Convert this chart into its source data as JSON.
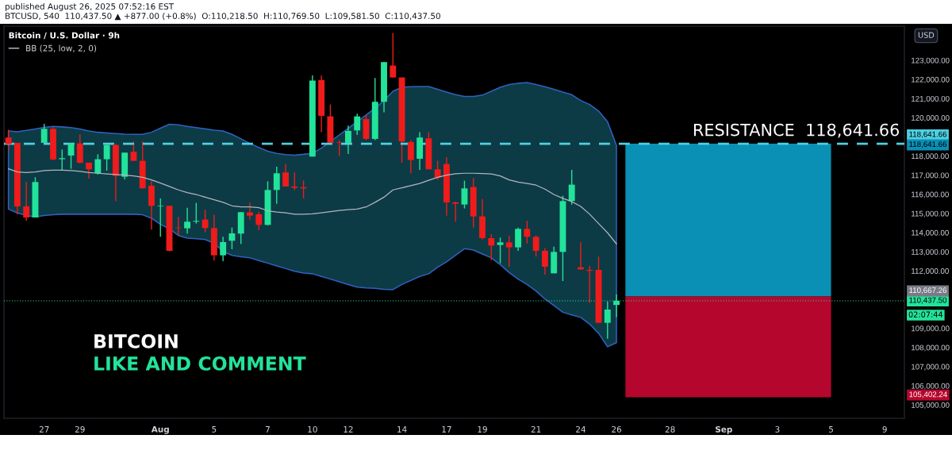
{
  "chart_data": {
    "type": "candlestick",
    "title": "Bitcoin / U.S. Dollar · 9h",
    "categories": [
      null,
      null,
      null,
      null,
      "27",
      null,
      null,
      null,
      "29",
      null,
      null,
      null,
      null,
      null,
      null,
      null,
      null,
      "Aug",
      null,
      null,
      null,
      null,
      null,
      "5",
      null,
      null,
      null,
      null,
      null,
      "7",
      null,
      null,
      null,
      null,
      "10",
      null,
      null,
      null,
      "12",
      null,
      null,
      null,
      null,
      null,
      "14",
      null,
      null,
      null,
      null,
      "17",
      null,
      null,
      null,
      "19",
      null,
      null,
      null,
      null,
      null,
      "21",
      null,
      null,
      null,
      null,
      "24",
      null,
      null,
      null,
      "26",
      null,
      null,
      null,
      null,
      null,
      "28",
      null,
      null,
      null,
      null,
      null,
      "Sep",
      null,
      null,
      null,
      null,
      null,
      "3",
      null,
      null,
      null,
      null,
      null,
      "5",
      null,
      null,
      null,
      null,
      null,
      "9",
      null,
      null
    ],
    "ohlc": [
      [
        118964,
        119379,
        118342,
        118619
      ],
      [
        118688,
        118688,
        114955,
        115370
      ],
      [
        115370,
        116642,
        114610,
        114790
      ],
      [
        114790,
        116891,
        114790,
        116642
      ],
      [
        118688,
        119683,
        118688,
        119420
      ],
      [
        119420,
        119517,
        117789,
        117817
      ],
      [
        117831,
        118342,
        117264,
        117886
      ],
      [
        118024,
        118660,
        117333,
        118660
      ],
      [
        118660,
        119130,
        117609,
        117651
      ],
      [
        117651,
        117651,
        116821,
        117305
      ],
      [
        117098,
        118093,
        117029,
        117831
      ],
      [
        117831,
        118577,
        117236,
        118577
      ],
      [
        118577,
        118619,
        115646,
        116960
      ],
      [
        116918,
        118176,
        116780,
        118176
      ],
      [
        118218,
        118757,
        117748,
        117748
      ],
      [
        117748,
        118757,
        116310,
        116310
      ],
      [
        116448,
        116683,
        114154,
        115398
      ],
      [
        115370,
        115785,
        113781,
        115398
      ],
      [
        115398,
        115398,
        113020,
        113048
      ],
      [
        114264,
        114817,
        113850,
        114237
      ],
      [
        114223,
        115301,
        113946,
        114568
      ],
      [
        114568,
        115550,
        114472,
        114610
      ],
      [
        114679,
        115190,
        114015,
        114237
      ],
      [
        114237,
        114928,
        112536,
        112813
      ],
      [
        112813,
        113781,
        112509,
        113504
      ],
      [
        113573,
        114264,
        113131,
        113960
      ],
      [
        113946,
        115066,
        113407,
        115066
      ],
      [
        115052,
        115564,
        114679,
        114886
      ],
      [
        114955,
        115094,
        114126,
        114403
      ],
      [
        114403,
        116683,
        114375,
        116227
      ],
      [
        116227,
        117444,
        115508,
        117098
      ],
      [
        117140,
        117582,
        116407,
        116407
      ],
      [
        116407,
        117140,
        116227,
        116338
      ],
      [
        116365,
        116725,
        115785,
        116310
      ],
      [
        117969,
        122212,
        117969,
        121936
      ],
      [
        121964,
        122212,
        119241,
        120098
      ],
      [
        120070,
        120692,
        118688,
        118688
      ],
      [
        118715,
        118826,
        117996,
        118688
      ],
      [
        118688,
        119586,
        118107,
        119310
      ],
      [
        119337,
        120208,
        119102,
        120070
      ],
      [
        119932,
        120139,
        118826,
        118895
      ],
      [
        118895,
        122075,
        118826,
        120830
      ],
      [
        120830,
        122904,
        120277,
        122904
      ],
      [
        122724,
        124424,
        122102,
        122102
      ],
      [
        122102,
        122102,
        117651,
        118757
      ],
      [
        118729,
        118826,
        117098,
        117789
      ],
      [
        117858,
        119241,
        117278,
        118964
      ],
      [
        118923,
        119241,
        117305,
        117305
      ],
      [
        117305,
        117748,
        116752,
        116863
      ],
      [
        117582,
        117927,
        114886,
        115577
      ],
      [
        115577,
        115619,
        114568,
        115508
      ],
      [
        115467,
        116711,
        115260,
        116310
      ],
      [
        116379,
        116849,
        114264,
        114845
      ],
      [
        114845,
        115757,
        113642,
        113711
      ],
      [
        113711,
        113919,
        112564,
        113324
      ],
      [
        113352,
        113739,
        112398,
        113490
      ],
      [
        113490,
        113850,
        112219,
        113228
      ],
      [
        113228,
        114264,
        113048,
        114195
      ],
      [
        114195,
        114610,
        113435,
        113781
      ],
      [
        113781,
        113850,
        112744,
        113048
      ],
      [
        113048,
        113186,
        111804,
        112219
      ],
      [
        111873,
        113269,
        111873,
        112992
      ],
      [
        112992,
        115923,
        111472,
        115646
      ],
      [
        115646,
        117278,
        115467,
        116504
      ],
      [
        112191,
        113490,
        112053,
        112081
      ],
      [
        112053,
        112260,
        110325,
        112002
      ],
      [
        112053,
        112744,
        109288,
        109288
      ],
      [
        109288,
        110394,
        108459,
        109979
      ],
      [
        110218.5,
        110769.5,
        109581.5,
        110437.5
      ],
      null,
      null,
      null,
      null,
      null,
      null,
      null,
      null,
      null,
      null,
      null,
      null,
      null,
      null,
      null,
      null,
      null,
      null,
      null,
      null,
      null,
      null,
      null,
      null,
      null,
      null,
      null,
      null,
      null,
      null,
      null,
      null
    ],
    "colors": [
      "#f01b1b",
      "#f01b1b",
      "#f01b1b",
      "#22e39a",
      "#22e39a",
      "#f01b1b",
      "#22e39a",
      "#22e39a",
      "#f01b1b",
      "#f01b1b",
      "#22e39a",
      "#22e39a",
      "#f01b1b",
      "#22e39a",
      "#f01b1b",
      "#f01b1b",
      "#f01b1b",
      "#22e39a",
      "#f01b1b",
      "#f01b1b",
      "#22e39a",
      "#22e39a",
      "#f01b1b",
      "#f01b1b",
      "#22e39a",
      "#22e39a",
      "#22e39a",
      "#f01b1b",
      "#f01b1b",
      "#22e39a",
      "#22e39a",
      "#f01b1b",
      "#f01b1b",
      "#f01b1b",
      "#22e39a",
      "#f01b1b",
      "#f01b1b",
      "#f01b1b",
      "#22e39a",
      "#22e39a",
      "#f01b1b",
      "#22e39a",
      "#22e39a",
      "#f01b1b",
      "#f01b1b",
      "#f01b1b",
      "#22e39a",
      "#f01b1b",
      "#f01b1b",
      "#f01b1b",
      "#f01b1b",
      "#22e39a",
      "#f01b1b",
      "#f01b1b",
      "#f01b1b",
      "#22e39a",
      "#f01b1b",
      "#22e39a",
      "#f01b1b",
      "#f01b1b",
      "#f01b1b",
      "#22e39a",
      "#22e39a",
      "#22e39a",
      "#f01b1b",
      "#f01b1b",
      "#f01b1b",
      "#22e39a",
      "#22e39a",
      null,
      null,
      null,
      null,
      null,
      null,
      null,
      null,
      null,
      null,
      null,
      null,
      null,
      null,
      null,
      null,
      null,
      null,
      null,
      null,
      null,
      null,
      null,
      null,
      null,
      null,
      null,
      null,
      null,
      null,
      null,
      null
    ],
    "series": [
      {
        "type": "line",
        "name": "BB (25, low, 2, 0)",
        "color": "#b2b5be",
        "values": [
          117330,
          117170,
          117140,
          117170,
          117240,
          117260,
          117260,
          117240,
          117200,
          117140,
          117100,
          117060,
          117030,
          117000,
          116960,
          116890,
          116750,
          116590,
          116410,
          116230,
          116090,
          115990,
          115850,
          115720,
          115580,
          115400,
          115340,
          115340,
          115300,
          115140,
          115070,
          115030,
          114960,
          114960,
          114980,
          115030,
          115090,
          115160,
          115200,
          115230,
          115340,
          115580,
          115850,
          116230,
          116340,
          116450,
          116570,
          116730,
          116890,
          117000,
          117070,
          117100,
          117100,
          117080,
          117060,
          116960,
          116750,
          116640,
          116570,
          116480,
          116270,
          115990,
          115790,
          115620,
          115370,
          114960,
          114470,
          113990,
          113410,
          null,
          null,
          null,
          null,
          null,
          null,
          null,
          null,
          null,
          null,
          null,
          null,
          null,
          null,
          null,
          null,
          null,
          null,
          null,
          null,
          null,
          null,
          null,
          null,
          null,
          null,
          null,
          null,
          null,
          null,
          null,
          null
        ],
        "upper": [
          119310,
          119270,
          119340,
          119410,
          119490,
          119550,
          119520,
          119480,
          119410,
          119310,
          119240,
          119200,
          119170,
          119140,
          119130,
          119130,
          119240,
          119450,
          119660,
          119630,
          119550,
          119480,
          119420,
          119350,
          119310,
          119130,
          118900,
          118660,
          118450,
          118250,
          118140,
          118070,
          118040,
          118090,
          118140,
          118410,
          118760,
          119100,
          119450,
          119790,
          120140,
          120490,
          120900,
          121380,
          121590,
          121620,
          121630,
          121630,
          121480,
          121340,
          121200,
          121110,
          121110,
          121180,
          121380,
          121590,
          121730,
          121800,
          121840,
          121730,
          121620,
          121480,
          121340,
          121200,
          120900,
          120690,
          120350,
          119790,
          118550,
          null,
          null,
          null,
          null,
          null,
          null,
          null,
          null,
          null,
          null,
          null,
          null,
          null,
          null,
          null,
          null,
          null,
          null,
          null,
          null,
          null,
          null,
          null,
          null,
          null,
          null,
          null,
          null,
          null,
          null,
          null,
          null
        ],
        "lower": [
          115230,
          115030,
          114890,
          114820,
          114890,
          114930,
          114960,
          114960,
          114960,
          114960,
          114960,
          114960,
          114960,
          114960,
          114960,
          114930,
          114750,
          114430,
          114200,
          113850,
          113710,
          113680,
          113640,
          113440,
          113020,
          112810,
          112740,
          112680,
          112540,
          112400,
          112260,
          112120,
          111980,
          111890,
          111850,
          111710,
          111570,
          111430,
          111290,
          111150,
          111110,
          111090,
          111040,
          111020,
          111290,
          111500,
          111710,
          111850,
          112190,
          112470,
          112810,
          113160,
          113090,
          112880,
          112680,
          112330,
          111910,
          111570,
          111290,
          110950,
          110530,
          110190,
          109840,
          109700,
          109570,
          109220,
          108740,
          108040,
          108250,
          null,
          null,
          null,
          null,
          null,
          null,
          null,
          null,
          null,
          null,
          null,
          null,
          null,
          null,
          null,
          null,
          null,
          null,
          null,
          null,
          null,
          null,
          null,
          null,
          null,
          null,
          null,
          null,
          null,
          null,
          null,
          null
        ]
      }
    ],
    "ylim": [
      104300,
      124780
    ],
    "yticks": [
      {
        "value": 105000,
        "label": "105,000.00"
      },
      {
        "value": 106000,
        "label": "106,000.00"
      },
      {
        "value": 107000,
        "label": "107,000.00"
      },
      {
        "value": 108000,
        "label": "108,000.00"
      },
      {
        "value": 109000,
        "label": "109,000.00"
      },
      {
        "value": 112000,
        "label": "112,000.00"
      },
      {
        "value": 113000,
        "label": "113,000.00"
      },
      {
        "value": 114000,
        "label": "114,000.00"
      },
      {
        "value": 115000,
        "label": "115,000.00"
      },
      {
        "value": 116000,
        "label": "116,000.00"
      },
      {
        "value": 117000,
        "label": "117,000.00"
      },
      {
        "value": 118000,
        "label": "118,000.00"
      },
      {
        "value": 120000,
        "label": "120,000.00"
      },
      {
        "value": 121000,
        "label": "121,000.00"
      },
      {
        "value": 122000,
        "label": "122,000.00"
      },
      {
        "value": 123000,
        "label": "123,000.00"
      }
    ],
    "ref_lines": [
      {
        "axis": "y",
        "value": 118641.66,
        "label": "118,641.66",
        "color": "#4dd0e1",
        "line_style": "dashed"
      },
      {
        "axis": "y",
        "value": 110437.5,
        "label": "110,437.50",
        "color": "#22e39a",
        "line_style": "dotted"
      }
    ],
    "bands": [
      {
        "axis": "y",
        "from": 110667.26,
        "to": 118641.66,
        "color": "#0a8fb5"
      },
      {
        "axis": "y",
        "from": 105402.24,
        "to": 110667.26,
        "color": "#b5062d"
      }
    ],
    "annotations": [
      {
        "text": "RESISTANCE  118,641.66",
        "y": 118641.66
      },
      "110,667.26",
      "02:07:44",
      "USD",
      "BITCOIN",
      "LIKE AND COMMENT",
      "published August 26, 2025 07:52:16 EST",
      "BTCUSD, 540  110,437.50 ▲ +877.00 (+0.8%)  O:110,218.50  H:110,769.50  L:109,581.50  C:110,437.50",
      "118,641.66",
      "105,402.24"
    ],
    "legend": "top left"
  }
}
